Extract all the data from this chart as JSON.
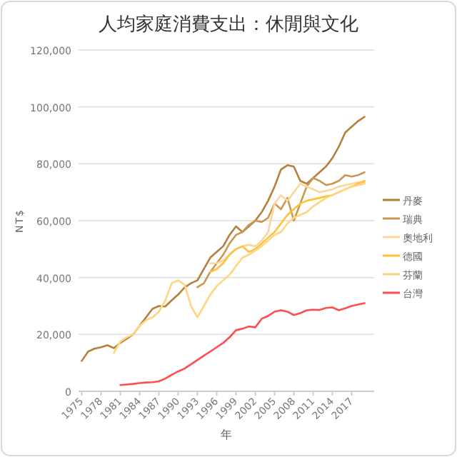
{
  "chart_data": {
    "type": "line",
    "title": "人均家庭消費支出：休閒與文化",
    "xlabel": "年",
    "ylabel": "NT$",
    "xlim": [
      1974.5,
      2020.5
    ],
    "xticks": [
      1975,
      1978,
      1981,
      1984,
      1987,
      1990,
      1993,
      1996,
      1999,
      2002,
      2005,
      2008,
      2011,
      2014,
      2017
    ],
    "ylim": [
      0,
      120000
    ],
    "yticks": [
      0,
      {
        "value": 20000,
        "label": "20,000"
      },
      {
        "value": 40000,
        "label": "40,000"
      },
      {
        "value": 60000,
        "label": "60,000"
      },
      {
        "value": 80000,
        "label": "80,000"
      },
      {
        "value": 100000,
        "label": "100,000"
      },
      {
        "value": 120000,
        "label": "120,000"
      }
    ],
    "grid": "y",
    "legend": "right",
    "series": [
      {
        "name": "丹麥",
        "color": "#b5803a",
        "x": [
          1975,
          1976,
          1977,
          1978,
          1979,
          1980,
          1981,
          1982,
          1983,
          1984,
          1985,
          1986,
          1987,
          1988,
          1989,
          1990,
          1991,
          1992,
          1993,
          1994,
          1995,
          1996,
          1997,
          1998,
          1999,
          2000,
          2001,
          2002,
          2003,
          2004,
          2005,
          2006,
          2007,
          2008,
          2009,
          2010,
          2011,
          2012,
          2013,
          2014,
          2015,
          2016,
          2017,
          2018,
          2019
        ],
        "values": [
          10700,
          14000,
          15000,
          15500,
          16200,
          15200,
          17000,
          18500,
          20000,
          23000,
          26000,
          29000,
          30000,
          29800,
          32000,
          34000,
          36500,
          38000,
          39000,
          43000,
          47000,
          49000,
          51000,
          55000,
          58000,
          56000,
          58000,
          60000,
          63000,
          67000,
          72000,
          78000,
          79500,
          79000,
          74000,
          73000,
          75000,
          77000,
          79000,
          82000,
          86000,
          91000,
          93000,
          95000,
          96500
        ]
      },
      {
        "name": "瑞典",
        "color": "#c9974f",
        "x": [
          1993,
          1994,
          1995,
          1996,
          1997,
          1998,
          1999,
          2000,
          2001,
          2002,
          2003,
          2004,
          2005,
          2006,
          2007,
          2008,
          2009,
          2010,
          2011,
          2012,
          2013,
          2014,
          2015,
          2016,
          2017,
          2018,
          2019
        ],
        "values": [
          36600,
          38000,
          42000,
          45000,
          48000,
          52000,
          55000,
          56000,
          58500,
          60000,
          59500,
          61000,
          66000,
          64000,
          68000,
          60000,
          66000,
          72000,
          75000,
          74000,
          72500,
          73000,
          74000,
          76000,
          75500,
          76000,
          77000
        ]
      },
      {
        "name": "奧地利",
        "color": "#fcd59a",
        "x": [
          1995,
          1996,
          1997,
          1998,
          1999,
          2000,
          2001,
          2002,
          2003,
          2004,
          2005,
          2006,
          2007,
          2008,
          2009,
          2010,
          2011,
          2012,
          2013,
          2014,
          2015,
          2016,
          2017,
          2018,
          2019
        ],
        "values": [
          45000,
          45000,
          46000,
          48000,
          50000,
          51000,
          51500,
          51000,
          53000,
          56000,
          66000,
          69000,
          67000,
          70000,
          73000,
          72000,
          71000,
          70000,
          70500,
          71000,
          72000,
          72500,
          73000,
          73500,
          73500
        ]
      },
      {
        "name": "德國",
        "color": "#ffc03a",
        "x": [
          1995,
          1996,
          1997,
          1998,
          1999,
          2000,
          2001,
          2002,
          2003,
          2004,
          2005,
          2006,
          2007,
          2008,
          2009,
          2010,
          2011,
          2012,
          2013,
          2014,
          2015,
          2016,
          2017,
          2018,
          2019
        ],
        "values": [
          42000,
          43000,
          45000,
          48000,
          50000,
          51000,
          49000,
          50000,
          52000,
          54000,
          56000,
          59000,
          62000,
          64000,
          66000,
          67000,
          67500,
          68000,
          68500,
          69000,
          70000,
          71000,
          72000,
          73000,
          74000
        ]
      },
      {
        "name": "芬蘭",
        "color": "#ffd580",
        "x": [
          1980,
          1981,
          1982,
          1983,
          1984,
          1985,
          1986,
          1987,
          1988,
          1989,
          1990,
          1991,
          1992,
          1993,
          1994,
          1995,
          1996,
          1997,
          1998,
          1999,
          2000,
          2001,
          2002,
          2003,
          2004,
          2005,
          2006,
          2007,
          2008,
          2009,
          2010,
          2011,
          2012,
          2013,
          2014,
          2015,
          2016,
          2017,
          2018,
          2019
        ],
        "values": [
          13500,
          17500,
          19000,
          20000,
          23000,
          25000,
          26000,
          28000,
          32000,
          38000,
          39000,
          37500,
          30000,
          26000,
          30000,
          34000,
          37000,
          39000,
          41000,
          44000,
          47000,
          48000,
          49500,
          51000,
          53000,
          55000,
          56000,
          59000,
          61000,
          62000,
          63000,
          65000,
          66500,
          68000,
          69000,
          70000,
          71000,
          72000,
          72500,
          73000
        ]
      },
      {
        "name": "台灣",
        "color": "#ff4d4d",
        "x": [
          1981,
          1982,
          1983,
          1984,
          1985,
          1986,
          1987,
          1988,
          1989,
          1990,
          1991,
          1992,
          1993,
          1994,
          1995,
          1996,
          1997,
          1998,
          1999,
          2000,
          2001,
          2002,
          2003,
          2004,
          2005,
          2006,
          2007,
          2008,
          2009,
          2010,
          2011,
          2012,
          2013,
          2014,
          2015,
          2016,
          2017,
          2018,
          2019
        ],
        "values": [
          2200,
          2400,
          2600,
          2900,
          3100,
          3200,
          3500,
          4500,
          5800,
          7000,
          8000,
          9500,
          11000,
          12500,
          14000,
          15500,
          17000,
          19000,
          21500,
          22000,
          22800,
          22500,
          25500,
          26500,
          28000,
          28500,
          28000,
          26800,
          27500,
          28500,
          28700,
          28600,
          29300,
          29500,
          28500,
          29200,
          30000,
          30500,
          31000
        ]
      }
    ]
  }
}
